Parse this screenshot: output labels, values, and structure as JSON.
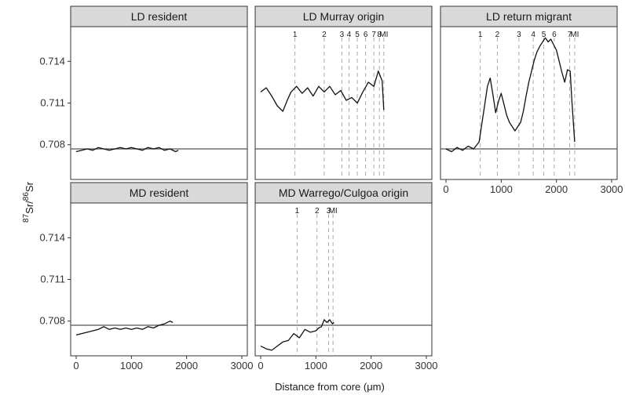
{
  "figure": {
    "xlabel": "Distance from core (μm)",
    "ylabel_parts": [
      "87",
      "Sr/",
      "86",
      "Sr"
    ]
  },
  "chart_data": {
    "type": "line",
    "facets": true,
    "reference_line_y": 0.7077,
    "xlim": [
      -100,
      3100
    ],
    "ylim": [
      0.7055,
      0.7165
    ],
    "x_ticks": [
      0,
      1000,
      2000,
      3000
    ],
    "x_tick_labels": [
      "0",
      "1000",
      "2000",
      "3000"
    ],
    "y_ticks": [
      0.708,
      0.711,
      0.714
    ],
    "y_tick_labels": [
      "0.708",
      "0.711",
      "0.714"
    ],
    "panels": [
      {
        "title": "LD resident",
        "marks": [],
        "series": [
          [
            0,
            0.7075
          ],
          [
            100,
            0.7076
          ],
          [
            200,
            0.7077
          ],
          [
            300,
            0.7076
          ],
          [
            400,
            0.7078
          ],
          [
            500,
            0.7077
          ],
          [
            600,
            0.7076
          ],
          [
            700,
            0.7077
          ],
          [
            800,
            0.7078
          ],
          [
            900,
            0.7077
          ],
          [
            1000,
            0.7078
          ],
          [
            1100,
            0.7077
          ],
          [
            1200,
            0.7076
          ],
          [
            1300,
            0.7078
          ],
          [
            1400,
            0.7077
          ],
          [
            1500,
            0.7078
          ],
          [
            1600,
            0.7076
          ],
          [
            1700,
            0.7077
          ],
          [
            1800,
            0.7075
          ],
          [
            1850,
            0.7076
          ]
        ]
      },
      {
        "title": "LD Murray origin",
        "marks": [
          {
            "x": 620,
            "label": "1"
          },
          {
            "x": 1150,
            "label": "2"
          },
          {
            "x": 1470,
            "label": "3"
          },
          {
            "x": 1600,
            "label": "4"
          },
          {
            "x": 1750,
            "label": "5"
          },
          {
            "x": 1900,
            "label": "6"
          },
          {
            "x": 2050,
            "label": "7"
          },
          {
            "x": 2150,
            "label": "8"
          },
          {
            "x": 2230,
            "label": "MI"
          }
        ],
        "series": [
          [
            0,
            0.7118
          ],
          [
            100,
            0.7121
          ],
          [
            200,
            0.7115
          ],
          [
            300,
            0.7108
          ],
          [
            400,
            0.7104
          ],
          [
            480,
            0.7112
          ],
          [
            550,
            0.7118
          ],
          [
            650,
            0.7122
          ],
          [
            750,
            0.7117
          ],
          [
            850,
            0.7121
          ],
          [
            950,
            0.7115
          ],
          [
            1050,
            0.7122
          ],
          [
            1150,
            0.7118
          ],
          [
            1250,
            0.7122
          ],
          [
            1350,
            0.7116
          ],
          [
            1450,
            0.7119
          ],
          [
            1550,
            0.7112
          ],
          [
            1650,
            0.7114
          ],
          [
            1750,
            0.711
          ],
          [
            1850,
            0.7118
          ],
          [
            1950,
            0.7125
          ],
          [
            2050,
            0.7122
          ],
          [
            2130,
            0.7133
          ],
          [
            2200,
            0.7126
          ],
          [
            2230,
            0.7105
          ]
        ]
      },
      {
        "title": "LD return migrant",
        "marks": [
          {
            "x": 620,
            "label": "1"
          },
          {
            "x": 930,
            "label": "2"
          },
          {
            "x": 1320,
            "label": "3"
          },
          {
            "x": 1580,
            "label": "4"
          },
          {
            "x": 1770,
            "label": "5"
          },
          {
            "x": 1960,
            "label": "6"
          },
          {
            "x": 2240,
            "label": "7"
          },
          {
            "x": 2330,
            "label": "MI"
          }
        ],
        "series": [
          [
            0,
            0.7077
          ],
          [
            100,
            0.7075
          ],
          [
            200,
            0.7078
          ],
          [
            300,
            0.7076
          ],
          [
            400,
            0.7079
          ],
          [
            500,
            0.7077
          ],
          [
            600,
            0.7082
          ],
          [
            680,
            0.7103
          ],
          [
            750,
            0.7122
          ],
          [
            800,
            0.7128
          ],
          [
            850,
            0.7116
          ],
          [
            900,
            0.7103
          ],
          [
            950,
            0.7111
          ],
          [
            1000,
            0.7117
          ],
          [
            1050,
            0.7109
          ],
          [
            1100,
            0.7101
          ],
          [
            1150,
            0.7096
          ],
          [
            1200,
            0.7093
          ],
          [
            1250,
            0.709
          ],
          [
            1300,
            0.7093
          ],
          [
            1350,
            0.7096
          ],
          [
            1400,
            0.7104
          ],
          [
            1450,
            0.7115
          ],
          [
            1500,
            0.7125
          ],
          [
            1550,
            0.7133
          ],
          [
            1600,
            0.7141
          ],
          [
            1650,
            0.7147
          ],
          [
            1700,
            0.7151
          ],
          [
            1750,
            0.7154
          ],
          [
            1800,
            0.7157
          ],
          [
            1850,
            0.7154
          ],
          [
            1900,
            0.7156
          ],
          [
            1950,
            0.7152
          ],
          [
            2000,
            0.7148
          ],
          [
            2050,
            0.714
          ],
          [
            2100,
            0.7132
          ],
          [
            2150,
            0.7125
          ],
          [
            2200,
            0.7134
          ],
          [
            2250,
            0.7133
          ],
          [
            2280,
            0.7112
          ],
          [
            2330,
            0.7082
          ]
        ]
      },
      {
        "title": "MD resident",
        "marks": [],
        "series": [
          [
            0,
            0.707
          ],
          [
            100,
            0.7071
          ],
          [
            200,
            0.7072
          ],
          [
            300,
            0.7073
          ],
          [
            400,
            0.7074
          ],
          [
            500,
            0.7076
          ],
          [
            600,
            0.7074
          ],
          [
            700,
            0.7075
          ],
          [
            800,
            0.7074
          ],
          [
            900,
            0.7075
          ],
          [
            1000,
            0.7074
          ],
          [
            1100,
            0.7075
          ],
          [
            1200,
            0.7074
          ],
          [
            1300,
            0.7076
          ],
          [
            1400,
            0.7075
          ],
          [
            1500,
            0.7077
          ],
          [
            1600,
            0.7078
          ],
          [
            1700,
            0.708
          ],
          [
            1750,
            0.7079
          ]
        ]
      },
      {
        "title": "MD Warrego/Culgoa origin",
        "marks": [
          {
            "x": 660,
            "label": "1"
          },
          {
            "x": 1020,
            "label": "2"
          },
          {
            "x": 1230,
            "label": "3"
          },
          {
            "x": 1310,
            "label": "MI"
          }
        ],
        "series": [
          [
            0,
            0.7062
          ],
          [
            100,
            0.706
          ],
          [
            200,
            0.7059
          ],
          [
            300,
            0.7062
          ],
          [
            400,
            0.7065
          ],
          [
            500,
            0.7066
          ],
          [
            600,
            0.7071
          ],
          [
            700,
            0.7068
          ],
          [
            800,
            0.7074
          ],
          [
            900,
            0.7072
          ],
          [
            1000,
            0.7073
          ],
          [
            1050,
            0.7075
          ],
          [
            1100,
            0.7076
          ],
          [
            1150,
            0.7081
          ],
          [
            1200,
            0.7079
          ],
          [
            1250,
            0.7081
          ],
          [
            1300,
            0.7078
          ],
          [
            1330,
            0.7079
          ]
        ]
      }
    ]
  }
}
